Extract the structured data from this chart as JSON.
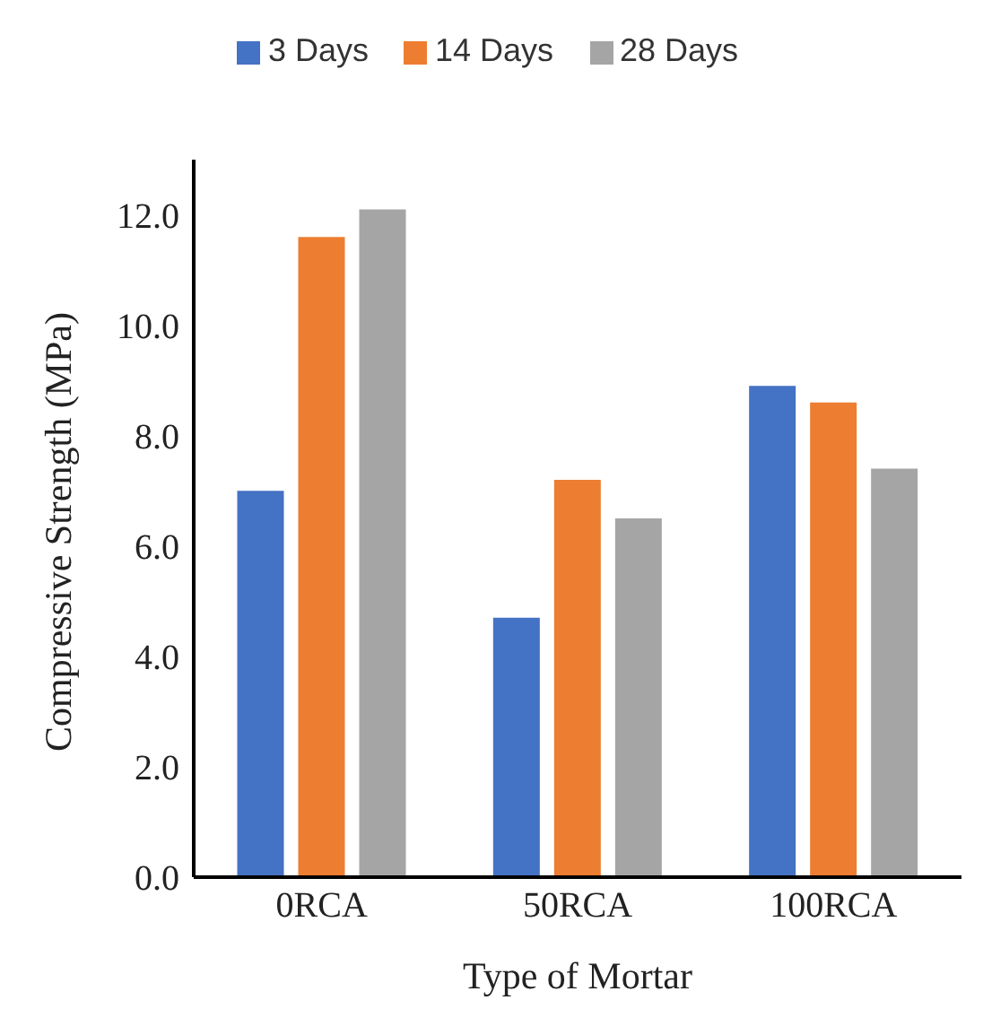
{
  "chart_data": {
    "type": "bar",
    "xlabel": "Type  of Mortar",
    "ylabel": "Compressive Strength (MPa)",
    "categories": [
      "0RCA",
      "50RCA",
      "100RCA"
    ],
    "series": [
      {
        "name": "3 Days",
        "color": "#4472c4",
        "values": [
          7.0,
          4.7,
          8.9
        ]
      },
      {
        "name": "14 Days",
        "color": "#ed7d31",
        "values": [
          11.6,
          7.2,
          8.6
        ]
      },
      {
        "name": "28 Days",
        "color": "#a5a5a5",
        "values": [
          12.1,
          6.5,
          7.4
        ]
      }
    ],
    "ylim": [
      0,
      13
    ],
    "yticks": [
      {
        "value": 0,
        "label": "0.0"
      },
      {
        "value": 2,
        "label": "2.0"
      },
      {
        "value": 4,
        "label": "4.0"
      },
      {
        "value": 6,
        "label": "6.0"
      },
      {
        "value": 8,
        "label": "8.0"
      },
      {
        "value": 10,
        "label": "10.0"
      },
      {
        "value": 12,
        "label": "12.0"
      }
    ],
    "grid": false,
    "legend": "top"
  }
}
